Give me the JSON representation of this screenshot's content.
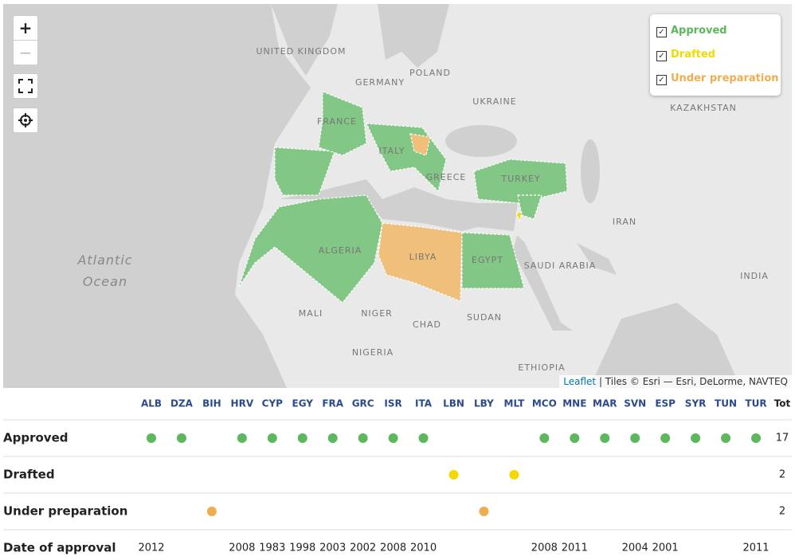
{
  "map": {
    "labels": [
      "UNITED KINGDOM",
      "GERMANY",
      "POLAND",
      "UKRAINE",
      "KAZAKHSTAN",
      "FRANCE",
      "ITALY",
      "GREECE",
      "TURKEY",
      "IRAN",
      "ALGERIA",
      "LIBYA",
      "EGYPT",
      "SAUDI ARABIA",
      "INDIA",
      "MALI",
      "NIGER",
      "CHAD",
      "SUDAN",
      "NIGERIA",
      "ETHIOPIA",
      "Atlantic Ocean"
    ],
    "controls": {
      "zoom_in": "+",
      "zoom_out": "−"
    },
    "legend": [
      {
        "name": "Approved",
        "color": "#5cb85c"
      },
      {
        "name": "Drafted",
        "color": "#f5d800"
      },
      {
        "name": "Under preparation",
        "color": "#f0ad4e"
      }
    ],
    "attribution": {
      "link": "Leaflet",
      "text": " | Tiles © Esri — Esri, DeLorme, NAVTEQ"
    }
  },
  "table": {
    "columns": [
      "ALB",
      "DZA",
      "BIH",
      "HRV",
      "CYP",
      "EGY",
      "FRA",
      "GRC",
      "ISR",
      "ITA",
      "LBN",
      "LBY",
      "MLT",
      "MCO",
      "MNE",
      "MAR",
      "SVN",
      "ESP",
      "SYR",
      "TUN",
      "TUR"
    ],
    "total_header": "Tot",
    "rows": [
      {
        "label": "Approved",
        "color": "#5cb85c",
        "cells": [
          true,
          true,
          false,
          true,
          true,
          true,
          true,
          true,
          true,
          true,
          false,
          false,
          false,
          true,
          true,
          true,
          true,
          true,
          true,
          true,
          true
        ],
        "total": 17
      },
      {
        "label": "Drafted",
        "color": "#f5d800",
        "cells": [
          false,
          false,
          false,
          false,
          false,
          false,
          false,
          false,
          false,
          false,
          true,
          false,
          true,
          false,
          false,
          false,
          false,
          false,
          false,
          false,
          false
        ],
        "total": 2
      },
      {
        "label": "Under preparation",
        "color": "#f0ad4e",
        "cells": [
          false,
          false,
          true,
          false,
          false,
          false,
          false,
          false,
          false,
          false,
          false,
          true,
          false,
          false,
          false,
          false,
          false,
          false,
          false,
          false,
          false
        ],
        "total": 2
      }
    ],
    "date_row": {
      "label": "Date of approval",
      "values": [
        2012,
        null,
        null,
        2008,
        1983,
        1998,
        2003,
        2002,
        2008,
        2010,
        null,
        null,
        null,
        2008,
        2011,
        null,
        2004,
        2001,
        null,
        null,
        2011
      ]
    }
  }
}
